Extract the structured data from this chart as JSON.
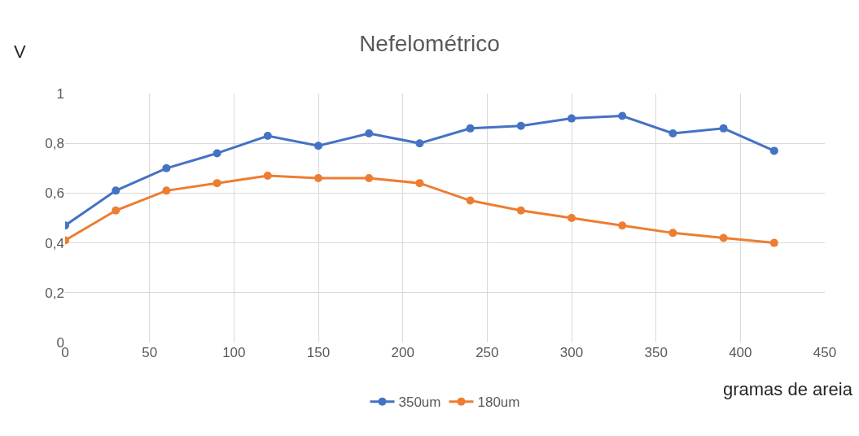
{
  "chart_data": {
    "type": "line",
    "title": "Nefelométrico",
    "xlabel": "gramas de areia",
    "ylabel": "V",
    "x": [
      0,
      30,
      60,
      90,
      120,
      150,
      180,
      210,
      240,
      270,
      300,
      330,
      360,
      390,
      420
    ],
    "series": [
      {
        "name": "350um",
        "color": "#4472c4",
        "values": [
          0.47,
          0.61,
          0.7,
          0.76,
          0.83,
          0.79,
          0.84,
          0.8,
          0.86,
          0.87,
          0.9,
          0.91,
          0.84,
          0.86,
          0.77
        ]
      },
      {
        "name": "180um",
        "color": "#ed7d31",
        "values": [
          0.41,
          0.53,
          0.61,
          0.64,
          0.67,
          0.66,
          0.66,
          0.64,
          0.57,
          0.53,
          0.5,
          0.47,
          0.44,
          0.42,
          0.4
        ]
      }
    ],
    "xlim": [
      0,
      450
    ],
    "xticks": [
      0,
      50,
      100,
      150,
      200,
      250,
      300,
      350,
      400,
      450
    ],
    "ylim": [
      0,
      1
    ],
    "yticks": [
      0,
      {
        "value": 0.2,
        "label": "0,2"
      },
      {
        "value": 0.4,
        "label": "0,4"
      },
      {
        "value": 0.6,
        "label": "0,6"
      },
      {
        "value": 0.8,
        "label": "0,8"
      },
      1
    ],
    "grid": true,
    "legend": "bottom",
    "marker": "circle",
    "line_style": "solid"
  }
}
